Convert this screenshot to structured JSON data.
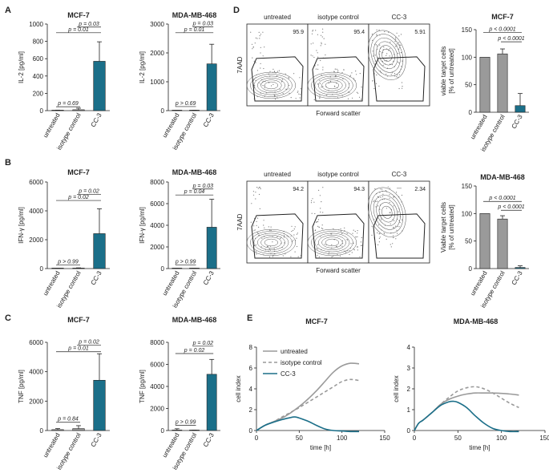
{
  "colors": {
    "teal": "#1b6f89",
    "gray": "#9a9a9a",
    "dark": "#222222",
    "facs_bg": "#f2f2f2"
  },
  "panels": {
    "A": "A",
    "B": "B",
    "C": "C",
    "D": "D",
    "E": "E"
  },
  "chart_data": [
    {
      "id": "A1",
      "type": "bar",
      "title": "MCF-7",
      "ylabel": "IL-2 [pg/ml]",
      "categories": [
        "untreated",
        "isotype control",
        "CC-3"
      ],
      "values": [
        3,
        10,
        570
      ],
      "errors": [
        3,
        18,
        225
      ],
      "ylim": [
        0,
        1000
      ],
      "yticks": [
        0,
        200,
        400,
        600,
        800,
        1000
      ],
      "tick_labels": [
        "0",
        "200",
        "400",
        "600",
        "800",
        "1000"
      ],
      "colors": [
        "gray",
        "gray",
        "teal"
      ],
      "comparisons": [
        {
          "a": 0,
          "b": 1,
          "label": "p = 0.69",
          "y": 45
        },
        {
          "a": 0,
          "b": 2,
          "label": "p = 0.01",
          "y": 900
        },
        {
          "a": 1,
          "b": 2,
          "label": "p = 0.03",
          "y": 965
        }
      ]
    },
    {
      "id": "A2",
      "type": "bar",
      "title": "MDA-MB-468",
      "ylabel": "IL-2 [pg/ml]",
      "categories": [
        "untreated",
        "isotype control",
        "CC-3"
      ],
      "values": [
        4,
        8,
        1620
      ],
      "errors": [
        3,
        6,
        680
      ],
      "ylim": [
        0,
        3000
      ],
      "yticks": [
        0,
        1000,
        2000,
        3000
      ],
      "tick_labels": [
        "0",
        "1000",
        "2000",
        "3000"
      ],
      "colors": [
        "gray",
        "gray",
        "teal"
      ],
      "comparisons": [
        {
          "a": 0,
          "b": 1,
          "label": "p > 0.69",
          "y": 140
        },
        {
          "a": 0,
          "b": 2,
          "label": "p = 0.01",
          "y": 2700
        },
        {
          "a": 1,
          "b": 2,
          "label": "p = 0.03",
          "y": 2900
        }
      ]
    },
    {
      "id": "B1",
      "type": "bar",
      "title": "MCF-7",
      "ylabel": "IFN-γ [pg/ml]",
      "categories": [
        "untreated",
        "isotype control",
        "CC-3"
      ],
      "values": [
        5,
        20,
        2420
      ],
      "errors": [
        5,
        30,
        1720
      ],
      "ylim": [
        0,
        6000
      ],
      "yticks": [
        0,
        2000,
        4000,
        6000
      ],
      "tick_labels": [
        "0",
        "2000",
        "4000",
        "6000"
      ],
      "colors": [
        "gray",
        "gray",
        "teal"
      ],
      "comparisons": [
        {
          "a": 0,
          "b": 1,
          "label": "p > 0.99",
          "y": 260
        },
        {
          "a": 0,
          "b": 2,
          "label": "p = 0.02",
          "y": 4720
        },
        {
          "a": 1,
          "b": 2,
          "label": "p = 0.02",
          "y": 5150
        }
      ]
    },
    {
      "id": "B2",
      "type": "bar",
      "title": "MDA-MB-468",
      "ylabel": "IFN-γ [pg/ml]",
      "categories": [
        "untreated",
        "isotype control",
        "CC-3"
      ],
      "values": [
        6,
        15,
        3820
      ],
      "errors": [
        5,
        10,
        2580
      ],
      "ylim": [
        0,
        8000
      ],
      "yticks": [
        0,
        2000,
        4000,
        6000,
        8000
      ],
      "tick_labels": [
        "0",
        "2000",
        "4000",
        "6000",
        "8000"
      ],
      "colors": [
        "gray",
        "gray",
        "teal"
      ],
      "comparisons": [
        {
          "a": 0,
          "b": 1,
          "label": "p > 0.99",
          "y": 330
        },
        {
          "a": 0,
          "b": 2,
          "label": "p = 0.04",
          "y": 6800
        },
        {
          "a": 1,
          "b": 2,
          "label": "p = 0.03",
          "y": 7350
        }
      ]
    },
    {
      "id": "C1",
      "type": "bar",
      "title": "MCF-7",
      "ylabel": "TNF [pg/ml]",
      "categories": [
        "untreated",
        "isotype control",
        "CC-3"
      ],
      "values": [
        60,
        130,
        3420
      ],
      "errors": [
        70,
        200,
        1800
      ],
      "ylim": [
        0,
        6000
      ],
      "yticks": [
        0,
        2000,
        4000,
        6000
      ],
      "tick_labels": [
        "0",
        "2000",
        "4000",
        "6000"
      ],
      "colors": [
        "gray",
        "gray",
        "teal"
      ],
      "comparisons": [
        {
          "a": 0,
          "b": 1,
          "label": "p = 0.84",
          "y": 560
        },
        {
          "a": 0,
          "b": 2,
          "label": "p = 0.01",
          "y": 5360
        },
        {
          "a": 1,
          "b": 2,
          "label": "p = 0.02",
          "y": 5800
        }
      ]
    },
    {
      "id": "C2",
      "type": "bar",
      "title": "MDA-MB-468",
      "ylabel": "TNF [pg/ml]",
      "categories": [
        "untreated",
        "isotype control",
        "CC-3"
      ],
      "values": [
        20,
        20,
        5100
      ],
      "errors": [
        140,
        20,
        1350
      ],
      "ylim": [
        0,
        8000
      ],
      "yticks": [
        0,
        2000,
        4000,
        6000,
        8000
      ],
      "tick_labels": [
        "0",
        "2000",
        "4000",
        "6000",
        "8000"
      ],
      "colors": [
        "gray",
        "gray",
        "teal"
      ],
      "comparisons": [
        {
          "a": 0,
          "b": 1,
          "label": "p > 0.99",
          "y": 480
        },
        {
          "a": 0,
          "b": 2,
          "label": "p = 0.02",
          "y": 6980
        },
        {
          "a": 1,
          "b": 2,
          "label": "p = 0.02",
          "y": 7650
        }
      ]
    },
    {
      "id": "D1",
      "type": "bar",
      "title": "MCF-7",
      "ylabel": "viable target cells [% of untreated]",
      "categories": [
        "untreated",
        "isotype control",
        "CC-3"
      ],
      "values": [
        100,
        106,
        12
      ],
      "errors": [
        0,
        9,
        22
      ],
      "ylim": [
        0,
        150
      ],
      "yticks": [
        0,
        50,
        100,
        150
      ],
      "tick_labels": [
        "0",
        "50",
        "100",
        "150"
      ],
      "colors": [
        "gray",
        "gray",
        "teal"
      ],
      "comparisons": [
        {
          "a": 0,
          "b": 2,
          "label": "p < 0.0001",
          "y": 145
        },
        {
          "a": 1,
          "b": 2,
          "label": "p < 0.0001",
          "y": 128
        }
      ]
    },
    {
      "id": "D2",
      "type": "bar",
      "title": "MDA-MB-468",
      "ylabel": "Viable target cells [% of untreated]",
      "categories": [
        "untreated",
        "isotype control",
        "CC-3"
      ],
      "values": [
        100,
        90,
        2
      ],
      "errors": [
        0,
        6,
        3
      ],
      "ylim": [
        0,
        150
      ],
      "yticks": [
        0,
        50,
        100,
        150
      ],
      "tick_labels": [
        "0",
        "50",
        "100",
        "150"
      ],
      "colors": [
        "gray",
        "gray",
        "teal"
      ],
      "comparisons": [
        {
          "a": 0,
          "b": 2,
          "label": "p < 0.0001",
          "y": 122
        },
        {
          "a": 1,
          "b": 2,
          "label": "p < 0.0001",
          "y": 106
        }
      ]
    },
    {
      "id": "E1",
      "type": "line",
      "title": "MCF-7",
      "xlabel": "time [h]",
      "ylabel": "cell index",
      "xlim": [
        0,
        150
      ],
      "ylim": [
        0,
        8
      ],
      "xticks": [
        0,
        50,
        100,
        150
      ],
      "xtick_labels": [
        "0",
        "50",
        "100",
        "150"
      ],
      "yticks": [
        0,
        2,
        4,
        6,
        8
      ],
      "ytick_labels": [
        "0",
        "2",
        "4",
        "6",
        "8"
      ],
      "legend": [
        "untreated",
        "isotype control",
        "CC-3"
      ],
      "series": [
        {
          "name": "untreated",
          "color": "gray",
          "dash": false,
          "x": [
            0,
            10,
            20,
            30,
            40,
            50,
            60,
            70,
            80,
            90,
            100,
            110,
            120
          ],
          "y": [
            0,
            0.5,
            0.85,
            1.2,
            1.7,
            2.3,
            3.0,
            3.8,
            4.7,
            5.6,
            6.2,
            6.45,
            6.4
          ]
        },
        {
          "name": "isotype control",
          "color": "gray",
          "dash": true,
          "x": [
            0,
            10,
            20,
            30,
            40,
            50,
            60,
            70,
            80,
            90,
            100,
            110,
            120
          ],
          "y": [
            0,
            0.5,
            0.85,
            1.3,
            1.75,
            2.2,
            2.7,
            3.2,
            3.7,
            4.2,
            4.7,
            4.9,
            4.8
          ]
        },
        {
          "name": "CC-3",
          "color": "teal",
          "dash": false,
          "x": [
            0,
            10,
            20,
            30,
            40,
            45,
            50,
            60,
            70,
            80,
            90,
            100,
            110,
            120
          ],
          "y": [
            0,
            0.5,
            0.8,
            1.05,
            1.25,
            1.3,
            1.2,
            0.9,
            0.5,
            0.15,
            0.0,
            -0.05,
            -0.1,
            -0.1
          ]
        }
      ]
    },
    {
      "id": "E2",
      "type": "line",
      "title": "MDA-MB-468",
      "xlabel": "time [h]",
      "ylabel": "cell index",
      "xlim": [
        0,
        150
      ],
      "ylim": [
        0,
        4
      ],
      "xticks": [
        0,
        50,
        100,
        150
      ],
      "xtick_labels": [
        "0",
        "50",
        "100",
        "150"
      ],
      "yticks": [
        0,
        1,
        2,
        3,
        4
      ],
      "ytick_labels": [
        "0",
        "1",
        "2",
        "3",
        "4"
      ],
      "series": [
        {
          "name": "untreated",
          "color": "gray",
          "dash": false,
          "x": [
            0,
            5,
            10,
            20,
            30,
            40,
            50,
            60,
            70,
            80,
            90,
            100,
            110,
            120
          ],
          "y": [
            0,
            0.35,
            0.5,
            0.85,
            1.25,
            1.5,
            1.65,
            1.75,
            1.8,
            1.8,
            1.8,
            1.78,
            1.75,
            1.7
          ]
        },
        {
          "name": "isotype control",
          "color": "gray",
          "dash": true,
          "x": [
            0,
            5,
            10,
            20,
            30,
            40,
            50,
            60,
            70,
            80,
            90,
            100,
            110,
            120
          ],
          "y": [
            0,
            0.35,
            0.5,
            0.85,
            1.25,
            1.6,
            1.9,
            2.05,
            2.1,
            2.0,
            1.8,
            1.55,
            1.3,
            1.1
          ]
        },
        {
          "name": "CC-3",
          "color": "teal",
          "dash": false,
          "x": [
            0,
            5,
            10,
            20,
            30,
            40,
            45,
            50,
            60,
            70,
            80,
            90,
            100,
            110,
            120
          ],
          "y": [
            0,
            0.35,
            0.5,
            0.85,
            1.2,
            1.38,
            1.4,
            1.35,
            1.1,
            0.7,
            0.35,
            0.1,
            0.0,
            -0.05,
            -0.05
          ]
        }
      ]
    }
  ],
  "facs": [
    {
      "id": "D1",
      "ylabel": "7AAD",
      "xlabel": "Forward scatter",
      "plots": [
        {
          "title": "untreated",
          "value": "95.9",
          "cc3": false
        },
        {
          "title": "isotype control",
          "value": "95.4",
          "cc3": false
        },
        {
          "title": "CC-3",
          "value": "5.91",
          "cc3": true
        }
      ]
    },
    {
      "id": "D2",
      "ylabel": "7AAD",
      "xlabel": "Forward scatter",
      "plots": [
        {
          "title": "untreated",
          "value": "94.2",
          "cc3": false
        },
        {
          "title": "isotype control",
          "value": "94.3",
          "cc3": false
        },
        {
          "title": "CC-3",
          "value": "2.34",
          "cc3": true
        }
      ]
    }
  ]
}
